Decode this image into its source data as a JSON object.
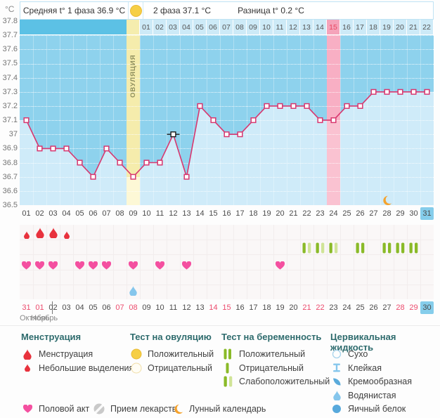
{
  "header": {
    "unit": "°C",
    "avg_phase1": "Средняя t° 1 фаза 36.9 °C",
    "phase2": "2 фаза 37.1 °C",
    "diff": "Разница t° 0.2 °C"
  },
  "colors": {
    "chart_bg": "#8ed2ed",
    "area_fill": "#cfebf9",
    "line": "#d8376f",
    "band_dark": "#5cc1e5",
    "band_cell": "#cdeaf7",
    "ovulation_cell": "#f5edae",
    "ovulation_col_top": "#f5ecac",
    "ovulation_col_bottom": "#fdf8d6",
    "pink_cell": "#f5a3ba",
    "pink_col_top": "#f8afc4",
    "pink_col_bottom": "#fac2d1",
    "weekend_text": "#ec4b6d",
    "today_bg": "#85cdeb",
    "menstruation": "#e8323d",
    "heart": "#f450a0",
    "test_dark_green": "#8aba28",
    "test_pale_green": "#d0e497",
    "cervical_blue": "#85c6ec",
    "moon_orange": "#f5a22d",
    "positive_yellow": "#f6cf45"
  },
  "chart_data": {
    "type": "line",
    "ylabel": "°C",
    "ylim": [
      36.5,
      37.8
    ],
    "yticks": [
      "37.8",
      "37.7",
      "37.6",
      "37.5",
      "37.4",
      "37.3",
      "37.2",
      "37.1",
      "37",
      "36.9",
      "36.8",
      "36.7",
      "36.6",
      "36.5"
    ],
    "grid": "horizontal-dotted",
    "cycle_days": [
      "01",
      "02",
      "03",
      "04",
      "05",
      "06",
      "07",
      "08",
      "09",
      "10",
      "11",
      "12",
      "13",
      "14",
      "15",
      "16",
      "17",
      "18",
      "19",
      "20",
      "21",
      "22",
      "23",
      "24",
      "25",
      "26",
      "27",
      "28",
      "29",
      "30",
      "31"
    ],
    "dates": [
      "31",
      "01",
      "02",
      "03",
      "04",
      "05",
      "06",
      "07",
      "08",
      "09",
      "10",
      "11",
      "12",
      "13",
      "14",
      "15",
      "16",
      "17",
      "18",
      "19",
      "20",
      "21",
      "22",
      "23",
      "24",
      "25",
      "26",
      "27",
      "28",
      "29",
      "30"
    ],
    "months": [
      "Октябрь",
      "Ноябрь"
    ],
    "weekend_date_indices": [
      0,
      1,
      7,
      8,
      14,
      15,
      21,
      22,
      28,
      29
    ],
    "today_index": 30,
    "current_cycle_day_index": 30,
    "temps": [
      37.1,
      36.9,
      36.9,
      36.9,
      36.8,
      36.7,
      36.9,
      36.8,
      36.7,
      36.8,
      36.8,
      37.0,
      36.7,
      37.2,
      37.1,
      37.0,
      37.0,
      37.1,
      37.2,
      37.2,
      37.2,
      37.2,
      37.1,
      37.1,
      37.2,
      37.2,
      37.3,
      37.3,
      37.3,
      37.3,
      37.3
    ],
    "excluded_temp_index": 11,
    "ovulation_col": 8,
    "ovulation_label": "ОВУЛЯЦИЯ",
    "dpo_labels": [
      "01",
      "02",
      "03",
      "04",
      "05",
      "06",
      "07",
      "08",
      "09",
      "10",
      "11",
      "12",
      "13",
      "14",
      "15",
      "16",
      "17",
      "18",
      "19",
      "20",
      "21",
      "22"
    ],
    "dpo_start_col": 9,
    "dpo_highlight_label": "15",
    "highlight_col": 23,
    "moon_col": 27,
    "menstruation": [
      {
        "col": 0,
        "size": "small"
      },
      {
        "col": 1,
        "size": "big"
      },
      {
        "col": 2,
        "size": "big"
      },
      {
        "col": 3,
        "size": "small"
      }
    ],
    "pregnancy_tests": [
      {
        "col": 21,
        "result": "weak"
      },
      {
        "col": 22,
        "result": "weak"
      },
      {
        "col": 23,
        "result": "weak"
      },
      {
        "col": 25,
        "result": "positive"
      },
      {
        "col": 27,
        "result": "positive"
      },
      {
        "col": 28,
        "result": "positive"
      },
      {
        "col": 29,
        "result": "positive"
      }
    ],
    "intercourse_cols": [
      0,
      1,
      2,
      4,
      5,
      6,
      8,
      10,
      12,
      19
    ],
    "cervical_fluid": [
      {
        "col": 8,
        "type": "watery"
      }
    ]
  },
  "legend": {
    "sections": [
      {
        "title": "Менструация",
        "items": [
          {
            "icon": "drop-big",
            "label": "Менструация"
          },
          {
            "icon": "drop-small",
            "label": "Небольшие выделения"
          }
        ]
      },
      {
        "title": "Тест на овуляцию",
        "items": [
          {
            "icon": "test-positive",
            "label": "Положительный"
          },
          {
            "icon": "test-negative",
            "label": "Отрицательный"
          }
        ]
      },
      {
        "title": "Тест на беременность",
        "items": [
          {
            "icon": "preg-positive",
            "label": "Положительный"
          },
          {
            "icon": "preg-negative",
            "label": "Отрицательный"
          },
          {
            "icon": "preg-weak",
            "label": "Слабоположительный"
          }
        ]
      },
      {
        "title": "Цервикальная жидкость",
        "items": [
          {
            "icon": "dry",
            "label": "Сухо"
          },
          {
            "icon": "sticky",
            "label": "Клейкая"
          },
          {
            "icon": "creamy",
            "label": "Кремообразная"
          },
          {
            "icon": "watery",
            "label": "Водянистая"
          },
          {
            "icon": "eggwhite",
            "label": "Яичный белок"
          }
        ]
      }
    ],
    "extra": [
      {
        "icon": "heart",
        "label": "Половой акт"
      },
      {
        "icon": "pill",
        "label": "Прием лекарств"
      },
      {
        "icon": "moon",
        "label": "Лунный календарь"
      }
    ]
  }
}
